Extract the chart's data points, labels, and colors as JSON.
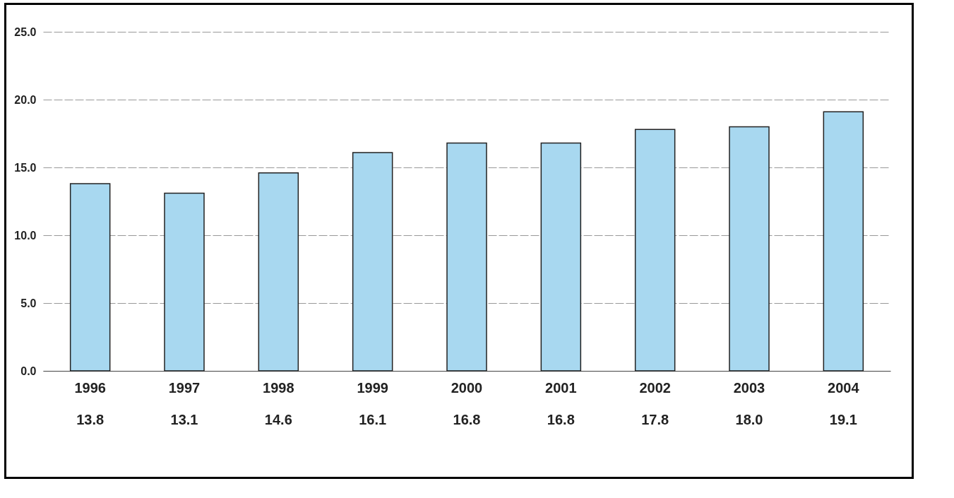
{
  "chart_data": {
    "type": "bar",
    "categories": [
      "1996",
      "1997",
      "1998",
      "1999",
      "2000",
      "2001",
      "2002",
      "2003",
      "2004"
    ],
    "values": [
      13.8,
      13.1,
      14.6,
      16.1,
      16.8,
      16.8,
      17.8,
      18.0,
      19.1
    ],
    "color": "#a8d8f0",
    "ylim": [
      0,
      25
    ],
    "yticks": [
      {
        "value": 0,
        "label": "0.0"
      },
      {
        "value": 5,
        "label": "5.0"
      },
      {
        "value": 10,
        "label": "10.0"
      },
      {
        "value": 15,
        "label": "15.0"
      },
      {
        "value": 20,
        "label": "20.0"
      },
      {
        "value": 25,
        "label": "25.0"
      }
    ],
    "value_labels": [
      "13.8",
      "13.1",
      "14.6",
      "16.1",
      "16.8",
      "16.8",
      "17.8",
      "18.0",
      "19.1"
    ],
    "grid": "y"
  }
}
